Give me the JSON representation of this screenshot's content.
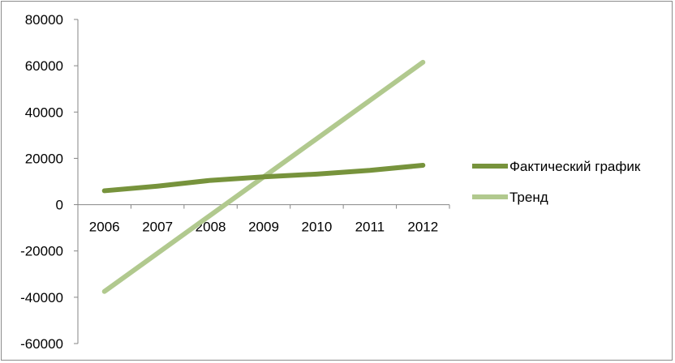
{
  "chart_data": {
    "type": "line",
    "categories": [
      "2006",
      "2007",
      "2008",
      "2009",
      "2010",
      "2011",
      "2012"
    ],
    "series": [
      {
        "name": "Фактический график",
        "color": "#77933c",
        "values": [
          6000,
          8000,
          10500,
          12000,
          13200,
          14800,
          17000
        ]
      },
      {
        "name": "Тренд",
        "color": "#b1c98e",
        "values": [
          -37500,
          -21000,
          -4500,
          12000,
          28500,
          45000,
          61500
        ]
      }
    ],
    "ylim": [
      -60000,
      80000
    ],
    "yticks": [
      "80000",
      "60000",
      "40000",
      "20000",
      "0",
      "-20000",
      "-40000",
      "-60000"
    ],
    "legend_position": "right",
    "grid": false
  }
}
